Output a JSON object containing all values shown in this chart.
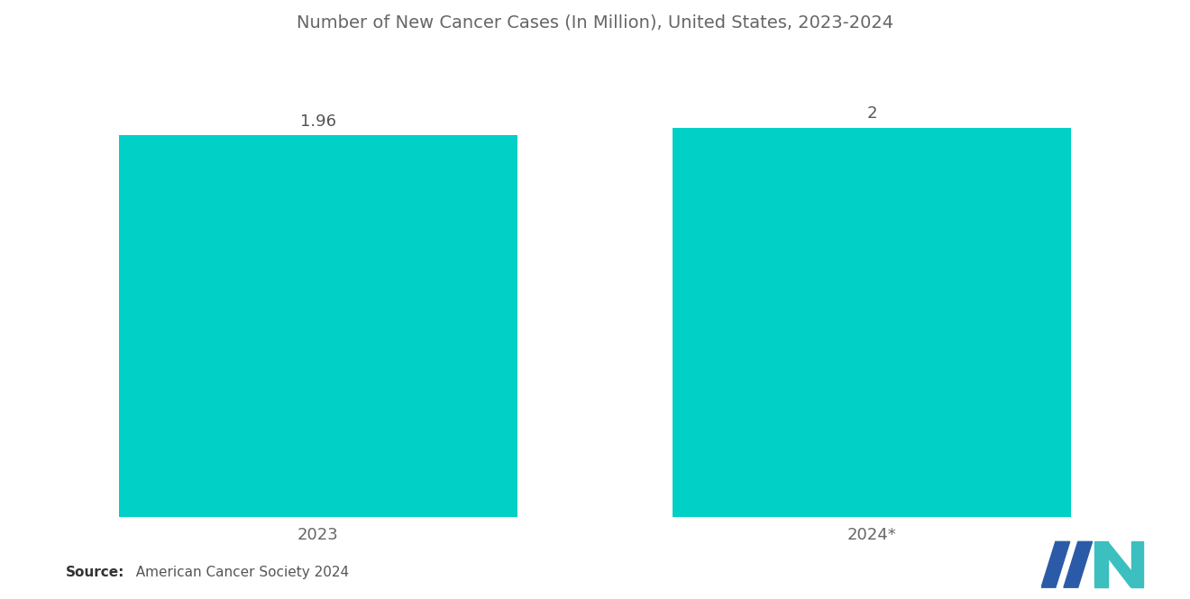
{
  "title": "Number of New Cancer Cases (In Million), United States, 2023-2024",
  "categories": [
    "2023",
    "2024*"
  ],
  "values": [
    1.96,
    2.0
  ],
  "value_labels": [
    "1.96",
    "2"
  ],
  "bar_color": "#00D0C5",
  "background_color": "#ffffff",
  "title_color": "#666666",
  "label_color": "#555555",
  "tick_color": "#666666",
  "source_bold": "Source:",
  "source_text": "  American Cancer Society 2024",
  "ylim": [
    0,
    2.4
  ],
  "title_fontsize": 14,
  "label_fontsize": 13,
  "tick_fontsize": 13,
  "source_fontsize": 11,
  "bar_width": 0.72,
  "xlim": [
    -0.55,
    1.55
  ]
}
